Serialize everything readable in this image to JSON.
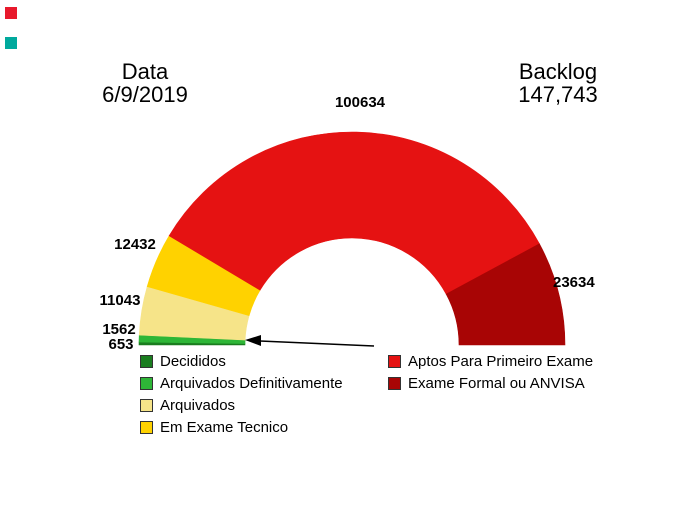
{
  "header": {
    "date_label": "Data",
    "date_value": "6/9/2019",
    "backlog_label": "Backlog",
    "backlog_value": "147,743"
  },
  "chart_data": {
    "type": "pie",
    "variant": "half-donut-gauge",
    "start_angle_deg": 180,
    "end_angle_deg": 0,
    "title": "",
    "legend_position": "bottom",
    "annotation": "arrow pointing at green segments (Decididos / Arquivados Definitivamente)",
    "segments": [
      {
        "label": "Decididos",
        "value": 653,
        "color": "#1a7d1f"
      },
      {
        "label": "Arquivados Definitivamente",
        "value": 1562,
        "color": "#2eb637"
      },
      {
        "label": "Arquivados",
        "value": 11043,
        "color": "#f6e489"
      },
      {
        "label": "Em Exame Tecnico",
        "value": 12432,
        "color": "#ffd200"
      },
      {
        "label": "Aptos Para Primeiro Exame",
        "value": 100634,
        "color": "#e51212"
      },
      {
        "label": "Exame Formal ou ANVISA",
        "value": 23634,
        "color": "#a80505"
      }
    ]
  }
}
